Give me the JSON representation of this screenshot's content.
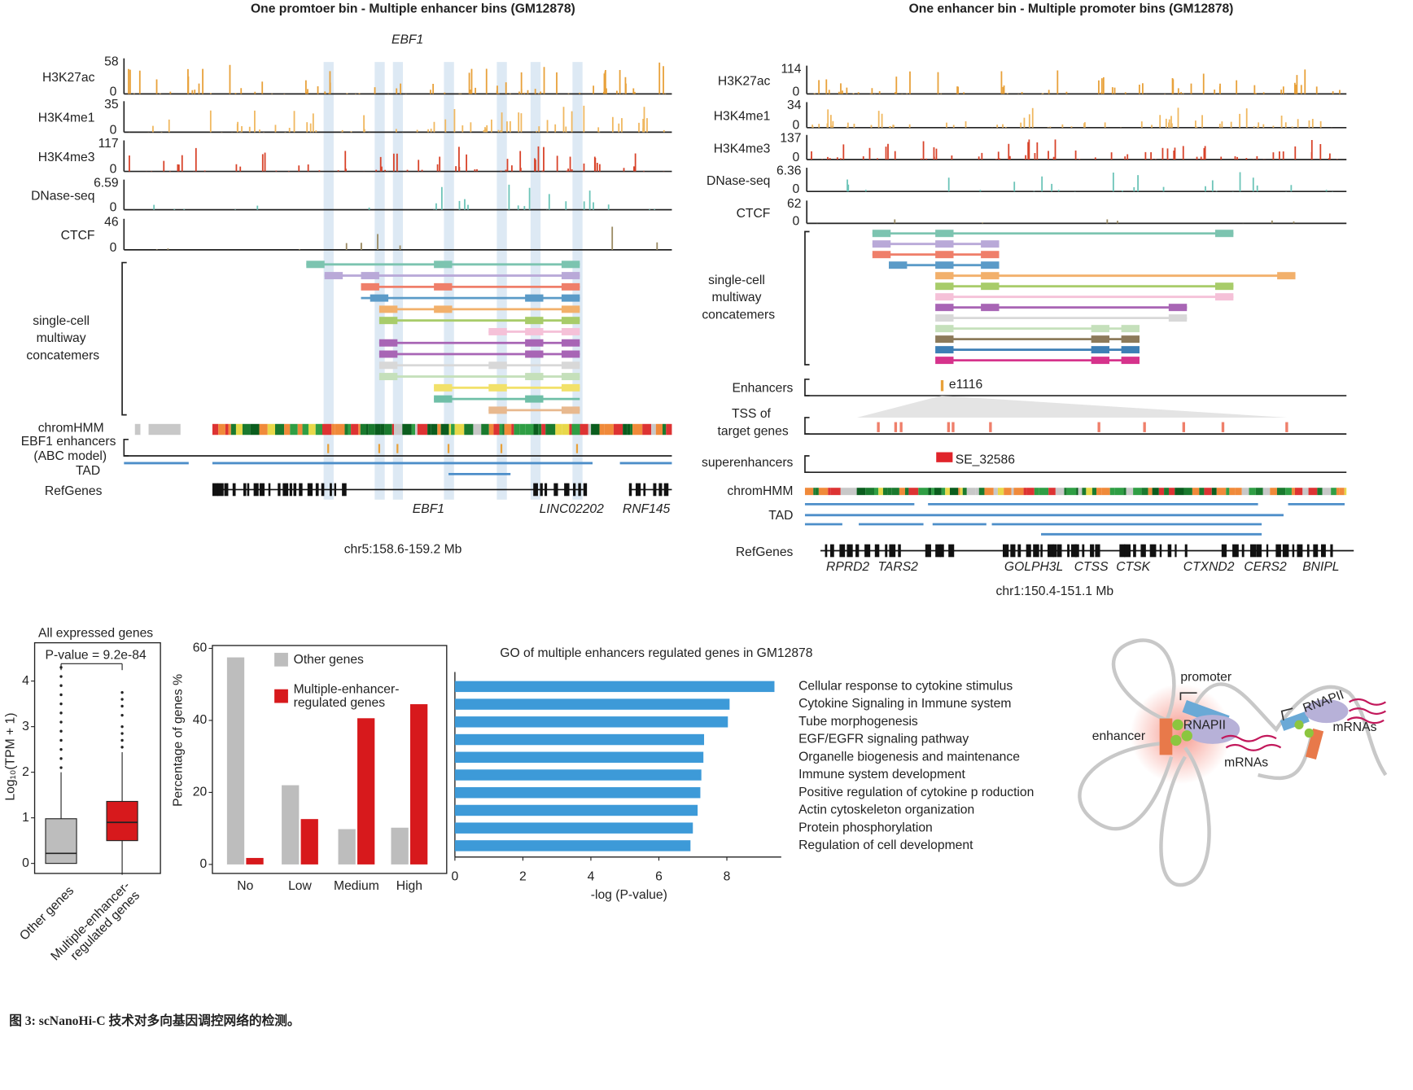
{
  "panel_a": {
    "title": "One promtoer bin - Multiple enhancer bins (GM12878)",
    "gene": "EBF1",
    "tracks": [
      {
        "name": "H3K27ac",
        "max": 58,
        "min": 0,
        "color": "#e8a13a"
      },
      {
        "name": "H3K4me1",
        "max": 35,
        "min": 0,
        "color": "#f0b860"
      },
      {
        "name": "H3K4me3",
        "max": 117,
        "min": 0,
        "color": "#d8432a"
      },
      {
        "name": "DNase-seq",
        "max": 6.59,
        "min": 0,
        "color": "#6cc4b8"
      },
      {
        "name": "CTCF",
        "max": 46,
        "min": 0,
        "color": "#9a8a62"
      }
    ],
    "concatemers_label": "single-cell multiway concatemers",
    "chromhmm_label": "chromHMM",
    "enhancers_label": "EBF1 enhancers (ABC model)",
    "tad_label": "TAD",
    "refgenes_label": "RefGenes",
    "genes": [
      "EBF1",
      "LINC02202",
      "RNF145"
    ],
    "region": "chr5:158.6-159.2 Mb"
  },
  "panel_b": {
    "title": "One enhancer bin - Multiple promoter bins (GM12878)",
    "tracks": [
      {
        "name": "H3K27ac",
        "max": 114,
        "min": 0,
        "color": "#e8a13a"
      },
      {
        "name": "H3K4me1",
        "max": 34,
        "min": 0,
        "color": "#f0b860"
      },
      {
        "name": "H3K4me3",
        "max": 137,
        "min": 0,
        "color": "#d8432a"
      },
      {
        "name": "DNase-seq",
        "max": 6.36,
        "min": 0,
        "color": "#6cc4b8"
      },
      {
        "name": "CTCF",
        "max": 62,
        "min": 0,
        "color": "#9a8a62"
      }
    ],
    "concatemers_label": "single-cell multiway concatemers",
    "enhancers_label": "Enhancers",
    "enhancer_id": "e1116",
    "tss_label": "TSS of target genes",
    "superenhancers_label": "superenhancers",
    "superenhancer_id": "SE_32586",
    "chromhmm_label": "chromHMM",
    "tad_label": "TAD",
    "refgenes_label": "RefGenes",
    "genes": [
      "RPRD2",
      "TARS2",
      "GOLPH3L",
      "CTSS",
      "CTSK",
      "CTXND2",
      "CERS2",
      "BNIPL"
    ],
    "region": "chr1:150.4-151.1 Mb"
  },
  "chart_data": [
    {
      "type": "box",
      "title": "All expressed genes",
      "annotation": "P-value = 9.2e-84",
      "y_label": "Log₁₀(TPM + 1)",
      "categories": [
        "Other genes",
        "Multiple-enhancer-regulated genes"
      ],
      "colors": [
        "#bdbdbd",
        "#d7191c"
      ],
      "boxes": [
        {
          "whisker_low": 0,
          "q1": 0,
          "median": 0.22,
          "q3": 0.98,
          "whisker_high": 2.0,
          "outliers": [
            2.1,
            2.3,
            2.5,
            2.7,
            2.9,
            3.1,
            3.3,
            3.5,
            3.7,
            3.9,
            4.1,
            4.3
          ]
        },
        {
          "whisker_low": -0.25,
          "q1": 0.5,
          "median": 0.9,
          "q3": 1.36,
          "whisker_high": 2.44,
          "outliers": [
            2.55,
            2.7,
            2.85,
            3.0,
            3.25,
            3.45,
            3.6,
            3.75
          ]
        }
      ],
      "ylim": [
        -0.22,
        4.84
      ],
      "yticks": [
        0,
        1,
        2,
        3,
        4
      ]
    },
    {
      "type": "bar",
      "y_label": "Percentage of genes %",
      "categories": [
        "No",
        "Low",
        "Medium",
        "High"
      ],
      "series": [
        {
          "name": "Other genes",
          "color": "#bdbdbd",
          "values": [
            57.5,
            22,
            9.8,
            10.2
          ]
        },
        {
          "name": "Multiple-enhancer-regulated genes",
          "color": "#d7191c",
          "values": [
            1.8,
            12.6,
            40.6,
            44.5
          ]
        }
      ],
      "ylim": [
        -2.5,
        60.8
      ],
      "yticks": [
        0,
        20,
        40,
        60
      ]
    },
    {
      "type": "hbar",
      "title": "GO of  multiple enhancers regulated genes in GM12878",
      "x_label": "-log  (P-value)",
      "categories": [
        "Cellular response to cytokine stimulus",
        "Cytokine Signaling in Immune system",
        "Tube morphogenesis",
        "EGF/EGFR signaling pathway",
        "Organelle biogenesis and maintenance",
        "Immune system development",
        "Positive regulation of cytokine p roduction",
        "Actin cytoskeleton organization",
        "Protein phosphorylation",
        "Regulation of cell development"
      ],
      "values": [
        9.4,
        8.08,
        8.03,
        7.33,
        7.31,
        7.25,
        7.22,
        7.14,
        7.0,
        6.93
      ],
      "color": "#3d9ad8",
      "xlim": [
        0,
        9.6
      ],
      "xticks": [
        0,
        2,
        4,
        6,
        8
      ]
    }
  ],
  "diagram": {
    "labels": [
      "promoter",
      "enhancer",
      "RNAPII",
      "mRNAs",
      "RNAPII",
      "mRNAs"
    ]
  },
  "caption": "图 3: scNanoHi-C 技术对多向基因调控网络的检测。"
}
